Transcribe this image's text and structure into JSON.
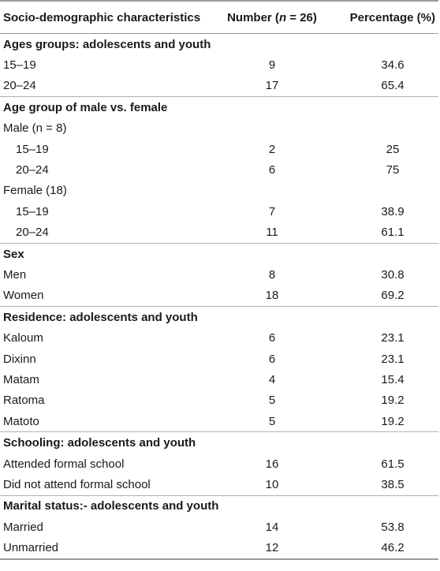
{
  "header": {
    "col1": "Socio-demographic characteristics",
    "col2_prefix": "Number (",
    "col2_n": "n",
    "col2_suffix": " = 26)",
    "col3": "Percentage (%)"
  },
  "rows": [
    {
      "type": "section",
      "label": "Ages groups: adolescents and youth",
      "number": "",
      "pct": ""
    },
    {
      "type": "data",
      "label": "15–19",
      "number": "9",
      "pct": "34.6"
    },
    {
      "type": "data",
      "label": "20–24",
      "number": "17",
      "pct": "65.4"
    },
    {
      "type": "section",
      "label": "Age group of male vs. female",
      "number": "",
      "pct": ""
    },
    {
      "type": "data",
      "label": "Male (n = 8)",
      "number": "",
      "pct": ""
    },
    {
      "type": "sub",
      "label": "15–19",
      "number": "2",
      "pct": "25"
    },
    {
      "type": "sub",
      "label": "20–24",
      "number": "6",
      "pct": "75"
    },
    {
      "type": "data",
      "label": "Female (18)",
      "number": "",
      "pct": ""
    },
    {
      "type": "sub",
      "label": "15–19",
      "number": "7",
      "pct": "38.9"
    },
    {
      "type": "sub",
      "label": "20–24",
      "number": "11",
      "pct": "61.1"
    },
    {
      "type": "section",
      "label": "Sex",
      "number": "",
      "pct": ""
    },
    {
      "type": "data",
      "label": "Men",
      "number": "8",
      "pct": "30.8"
    },
    {
      "type": "data",
      "label": "Women",
      "number": "18",
      "pct": "69.2"
    },
    {
      "type": "section",
      "label": "Residence: adolescents and youth",
      "number": "",
      "pct": ""
    },
    {
      "type": "data",
      "label": "Kaloum",
      "number": "6",
      "pct": "23.1"
    },
    {
      "type": "data",
      "label": "Dixinn",
      "number": "6",
      "pct": "23.1"
    },
    {
      "type": "data",
      "label": "Matam",
      "number": "4",
      "pct": "15.4"
    },
    {
      "type": "data",
      "label": "Ratoma",
      "number": "5",
      "pct": "19.2"
    },
    {
      "type": "data",
      "label": "Matoto",
      "number": "5",
      "pct": "19.2"
    },
    {
      "type": "section",
      "label": "Schooling: adolescents and youth",
      "number": "",
      "pct": ""
    },
    {
      "type": "data",
      "label": "Attended formal school",
      "number": "16",
      "pct": "61.5"
    },
    {
      "type": "data",
      "label": "Did not attend formal school",
      "number": "10",
      "pct": "38.5"
    },
    {
      "type": "section",
      "label": "Marital status:- adolescents and youth",
      "number": "",
      "pct": ""
    },
    {
      "type": "data",
      "label": "Married",
      "number": "14",
      "pct": "53.8"
    },
    {
      "type": "data",
      "label": "Unmarried",
      "number": "12",
      "pct": "46.2"
    }
  ]
}
